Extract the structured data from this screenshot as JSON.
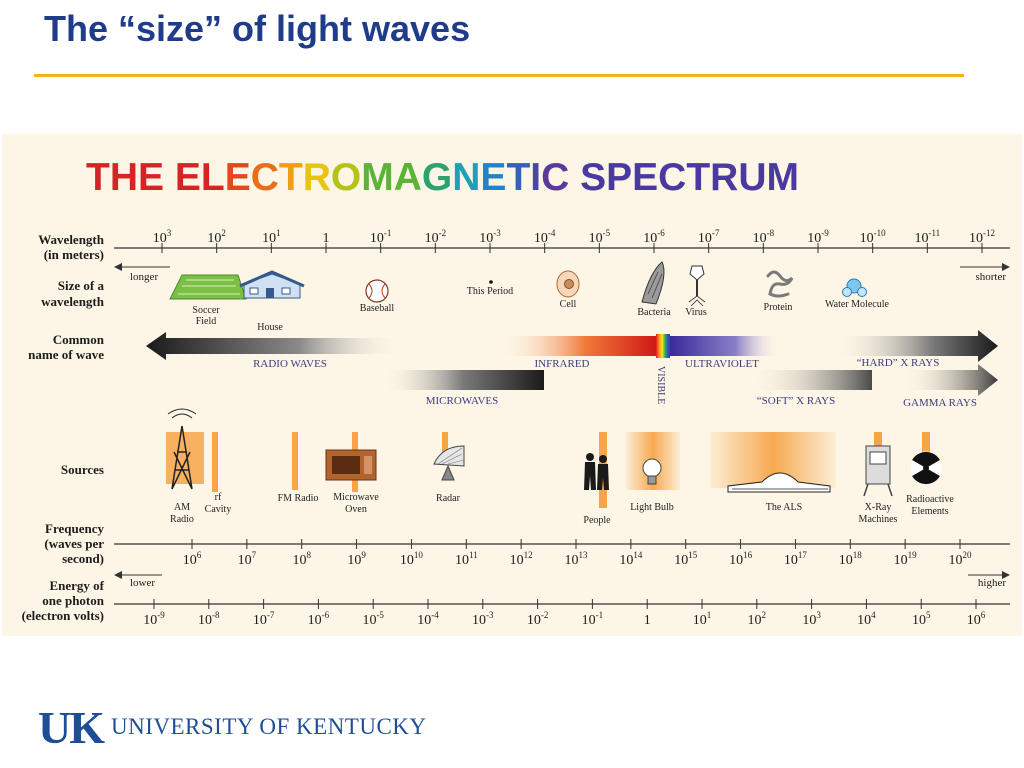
{
  "slide": {
    "title": "The “size” of light waves"
  },
  "spectrum": {
    "heading": "THE ELECTROMAGNETIC SPECTRUM",
    "heading_colors": [
      "#d72323",
      "#e0481d",
      "#e86f18",
      "#efa012",
      "#e9c40f",
      "#b3c417",
      "#5db337",
      "#2ca36c",
      "#1ea1b7",
      "#2283c8",
      "#3760b8",
      "#4a47a8",
      "#5d3a9a"
    ],
    "row_labels": {
      "wavelength": [
        "Wavelength",
        "(in meters)"
      ],
      "size": [
        "Size of a",
        "wavelength"
      ],
      "common": [
        "Common",
        "name of wave"
      ],
      "sources": "Sources",
      "frequency": [
        "Frequency",
        "(waves per",
        "second)"
      ],
      "energy": [
        "Energy of",
        "one photon",
        "(electron volts)"
      ]
    },
    "wavelength_ticks": [
      {
        "base": "10",
        "exp": "3"
      },
      {
        "base": "10",
        "exp": "2"
      },
      {
        "base": "10",
        "exp": "1"
      },
      {
        "base": "1",
        "exp": ""
      },
      {
        "base": "10",
        "exp": "-1"
      },
      {
        "base": "10",
        "exp": "-2"
      },
      {
        "base": "10",
        "exp": "-3"
      },
      {
        "base": "10",
        "exp": "-4"
      },
      {
        "base": "10",
        "exp": "-5"
      },
      {
        "base": "10",
        "exp": "-6"
      },
      {
        "base": "10",
        "exp": "-7"
      },
      {
        "base": "10",
        "exp": "-8"
      },
      {
        "base": "10",
        "exp": "-9"
      },
      {
        "base": "10",
        "exp": "-10"
      },
      {
        "base": "10",
        "exp": "-11"
      },
      {
        "base": "10",
        "exp": "-12"
      }
    ],
    "longer": "longer",
    "shorter": "shorter",
    "size_items": [
      "Soccer",
      "Field",
      "House",
      "Baseball",
      "This Period",
      "Cell",
      "Bacteria",
      "Virus",
      "Protein",
      "Water Molecule"
    ],
    "waves": {
      "radio": "RADIO WAVES",
      "infrared": "INFRARED",
      "visible": "VISIBLE",
      "ultraviolet": "ULTRAVIOLET",
      "hard_xrays": "“HARD” X RAYS",
      "microwaves": "MICROWAVES",
      "soft_xrays": "“SOFT” X RAYS",
      "gamma": "GAMMA RAYS"
    },
    "sources": [
      "AM",
      "Radio",
      "rf",
      "Cavity",
      "FM Radio",
      "Microwave",
      "Oven",
      "Radar",
      "People",
      "Light Bulb",
      "The ALS",
      "X-Ray",
      "Machines",
      "Radioactive",
      "Elements"
    ],
    "frequency_ticks": [
      {
        "base": "10",
        "exp": "6"
      },
      {
        "base": "10",
        "exp": "7"
      },
      {
        "base": "10",
        "exp": "8"
      },
      {
        "base": "10",
        "exp": "9"
      },
      {
        "base": "10",
        "exp": "10"
      },
      {
        "base": "10",
        "exp": "11"
      },
      {
        "base": "10",
        "exp": "12"
      },
      {
        "base": "10",
        "exp": "13"
      },
      {
        "base": "10",
        "exp": "14"
      },
      {
        "base": "10",
        "exp": "15"
      },
      {
        "base": "10",
        "exp": "16"
      },
      {
        "base": "10",
        "exp": "17"
      },
      {
        "base": "10",
        "exp": "18"
      },
      {
        "base": "10",
        "exp": "19"
      },
      {
        "base": "10",
        "exp": "20"
      }
    ],
    "lower": "lower",
    "higher": "higher",
    "energy_ticks": [
      {
        "base": "10",
        "exp": "-9"
      },
      {
        "base": "10",
        "exp": "-8"
      },
      {
        "base": "10",
        "exp": "-7"
      },
      {
        "base": "10",
        "exp": "-6"
      },
      {
        "base": "10",
        "exp": "-5"
      },
      {
        "base": "10",
        "exp": "-4"
      },
      {
        "base": "10",
        "exp": "-3"
      },
      {
        "base": "10",
        "exp": "-2"
      },
      {
        "base": "10",
        "exp": "-1"
      },
      {
        "base": "1",
        "exp": ""
      },
      {
        "base": "10",
        "exp": "1"
      },
      {
        "base": "10",
        "exp": "2"
      },
      {
        "base": "10",
        "exp": "3"
      },
      {
        "base": "10",
        "exp": "4"
      },
      {
        "base": "10",
        "exp": "5"
      },
      {
        "base": "10",
        "exp": "6"
      }
    ]
  },
  "footer": {
    "logo_mark": "UK",
    "logo_text": "UNIVERSITY OF KENTUCKY"
  }
}
